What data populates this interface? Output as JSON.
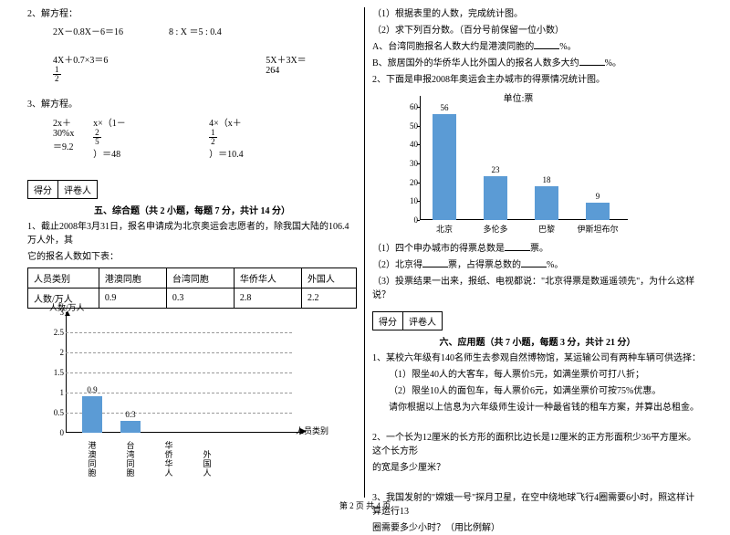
{
  "left": {
    "q2": "2、解方程：",
    "eqs1a": "2X－0.8X－6＝16",
    "eqs1b": "8 : X  ＝5 : 0.4",
    "eqs2a_prefix": "4X＋0.7×3＝6",
    "eqs2a_frac_n": "1",
    "eqs2a_frac_d": "2",
    "eqs2b": "5X＋3X＝264",
    "q3": "3、解方程。",
    "eqs3a": "2x＋30%x＝9.2",
    "eqs3b_prefix": "x×（1－",
    "eqs3b_frac_n": "2",
    "eqs3b_frac_d": "5",
    "eqs3b_suffix": "）＝48",
    "eqs3c_prefix": "4×（x＋",
    "eqs3c_frac_n": "1",
    "eqs3c_frac_d": "2",
    "eqs3c_suffix": "）＝10.4",
    "score_a": "得分",
    "score_b": "评卷人",
    "section5": "五、综合题（共 2 小题，每题 7 分，共计 14 分）",
    "p1a": "1、截止2008年3月31日，报名申请成为北京奥运会志愿者的，除我国大陆的106.4万人外，其",
    "p1b": "它的报名人数如下表：",
    "table": {
      "h1": "人员类别",
      "h2": "港澳同胞",
      "h3": "台湾同胞",
      "h4": "华侨华人",
      "h5": "外国人",
      "r1": "人数/万人",
      "r2": "0.9",
      "r3": "0.3",
      "r4": "2.8",
      "r5": "2.2"
    },
    "chart1": {
      "ytitle": "人数/万人",
      "xtitle": "人员类别",
      "ylim_top": 3,
      "ytick_step": 0.5,
      "yticks": [
        "3",
        "2.5",
        "2",
        "1.5",
        "1",
        "0.5",
        "0"
      ],
      "bars": [
        {
          "label": "港澳同胞",
          "value": 0.9,
          "text": "0.9"
        },
        {
          "label": "台湾同胞",
          "value": 0.3,
          "text": "0.3"
        },
        {
          "label": "华侨华人",
          "value": null,
          "text": ""
        },
        {
          "label": "外国人",
          "value": null,
          "text": ""
        }
      ],
      "bar_color": "#5b9bd5",
      "background": "#ffffff"
    }
  },
  "right": {
    "l1": "（1）根据表里的人数，完成统计图。",
    "l2": "（2）求下列百分数。（百分号前保留一位小数）",
    "l3": "A、台湾同胞报名人数大约是港澳同胞的",
    "l3s": "%。",
    "l4": "B、旅居国外的华侨华人比外国人的报名人数多大约",
    "l4s": "%。",
    "l5": "2、下面是申报2008年奥运会主办城市的得票情况统计图。",
    "chart2": {
      "title": "单位:票",
      "yticks": [
        "60",
        "50",
        "40",
        "30",
        "20",
        "10",
        "0"
      ],
      "ylim_top": 60,
      "bars": [
        {
          "label": "北京",
          "value": 56,
          "text": "56"
        },
        {
          "label": "多伦多",
          "value": 23,
          "text": "23"
        },
        {
          "label": "巴黎",
          "value": 18,
          "text": "18"
        },
        {
          "label": "伊斯坦布尔",
          "value": 9,
          "text": "9"
        }
      ],
      "bar_color": "#5b9bd5",
      "background": "#ffffff"
    },
    "q1": "（1）四个申办城市的得票总数是",
    "q1s": "票。",
    "q2a": "（2）北京得",
    "q2b": "票，占得票总数的",
    "q2c": "%。",
    "q3": "（3）投票结果一出来，报纸、电视都说：\"北京得票是数遥遥领先\"，为什么这样说？",
    "score_a": "得分",
    "score_b": "评卷人",
    "section6": "六、应用题（共 7 小题，每题 3 分，共计 21 分）",
    "a1": "1、某校六年级有140名师生去参观自然博物馆，某运输公司有两种车辆可供选择：",
    "a1a": "（1）限坐40人的大客车，每人票价5元，如满坐票价可打八折；",
    "a1b": "（2）限坐10人的面包车，每人票价6元，如满坐票价可按75%优惠。",
    "a1c": "请你根据以上信息为六年级师生设计一种最省钱的租车方案，并算出总租金。",
    "a2a": "2、一个长为12厘米的长方形的面积比边长是12厘米的正方形面积少36平方厘米。这个长方形",
    "a2b": "的宽是多少厘米？",
    "a3a": "3、我国发射的\"嫦娥一号\"探月卫星，在空中绕地球飞行4圈需要6小时，照这样计算运行13",
    "a3b": "圈需要多少小时？（用比例解）"
  },
  "footer": "第 2 页 共 4 页"
}
